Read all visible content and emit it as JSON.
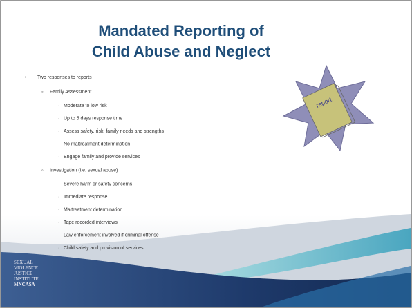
{
  "slide": {
    "title": [
      "Mandated Reporting of",
      "Child Abuse and Neglect"
    ],
    "outline": {
      "text": "Two responses to reports",
      "groups": [
        {
          "text": "Family Assessment",
          "items": [
            "Moderate to low risk",
            "Up to 5 days response time",
            "Assess safety, risk, family needs and strengths",
            "No maltreatment determination",
            "Engage family and provide services"
          ]
        },
        {
          "text": "Investigation (i.e. sexual abuse)",
          "items": [
            "Severe harm or safety concerns",
            "Immediate response",
            "Maltreatment determination",
            "Tape recorded interviews",
            "Law enforcement involved if criminal offense",
            "Child safety and provision of services"
          ]
        }
      ]
    },
    "image_label": "report",
    "logo": [
      "SEXUAL",
      "VIOLENCE",
      "JUSTICE",
      "INSTITUTE",
      "MNCASA"
    ]
  }
}
